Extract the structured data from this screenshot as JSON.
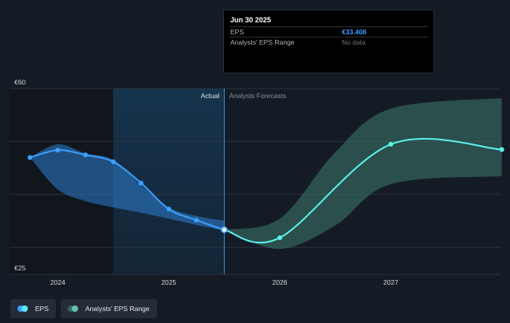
{
  "tooltip": {
    "date": "Jun 30 2025",
    "rows": [
      {
        "label": "EPS",
        "value": "€33.408"
      },
      {
        "label": "Analysts' EPS Range",
        "value": "No data"
      }
    ]
  },
  "legend": {
    "items": [
      {
        "label": "EPS",
        "color_a": "#5ce8ff",
        "color_b": "#3ba1ff"
      },
      {
        "label": "Analysts' EPS Range",
        "color_a": "#68c0b0",
        "color_b": "#2f6a60"
      }
    ]
  },
  "colors": {
    "eps_actual": "#3ba1ff",
    "eps_forecast": "#5cf2ee",
    "range_actual": "#2e7fd0",
    "range_forecast": "#3d7a6e",
    "grid": "#2b323c"
  },
  "chart_data": {
    "type": "line",
    "ylim": [
      25,
      60
    ],
    "y_ticks": [
      {
        "value": 60,
        "label": "€60"
      },
      {
        "value": 25,
        "label": "€25"
      }
    ],
    "x_ticks": [
      {
        "value": 2024.0,
        "label": "2024"
      },
      {
        "value": 2025.0,
        "label": "2025"
      },
      {
        "value": 2026.0,
        "label": "2026"
      },
      {
        "value": 2027.0,
        "label": "2027"
      }
    ],
    "xlim": [
      2023.6,
      2028.0
    ],
    "divider_x": 2025.5,
    "highlight_start_x": 2024.5,
    "section_labels": {
      "actual": "Actual",
      "forecast": "Analysts Forecasts"
    },
    "series": [
      {
        "name": "EPS",
        "x": [
          2023.75,
          2024.0,
          2024.25,
          2024.5,
          2024.75,
          2025.0,
          2025.25,
          2025.5
        ],
        "y": [
          47.0,
          48.4,
          47.5,
          46.2,
          42.2,
          37.3,
          35.2,
          33.4
        ]
      },
      {
        "name": "EPS",
        "x": [
          2025.5,
          2026.0,
          2027.0,
          2028.0
        ],
        "y": [
          33.4,
          31.9,
          49.5,
          48.5
        ]
      }
    ],
    "ranges": [
      {
        "name": "Analysts' EPS Range",
        "x": [
          2023.75,
          2024.0,
          2024.25,
          2024.5,
          2024.75,
          2025.0,
          2025.25,
          2025.5
        ],
        "low": [
          47.0,
          41.0,
          38.8,
          37.6,
          36.6,
          35.5,
          34.3,
          33.2
        ],
        "high": [
          47.0,
          49.5,
          47.8,
          46.6,
          41.8,
          37.6,
          36.0,
          35.1
        ]
      },
      {
        "name": "Analysts' EPS Range",
        "x": [
          2025.5,
          2026.0,
          2026.5,
          2027.0,
          2028.0
        ],
        "low": [
          33.4,
          29.8,
          34.2,
          42.0,
          43.5
        ],
        "high": [
          33.4,
          35.5,
          48.0,
          56.2,
          58.2
        ]
      }
    ]
  }
}
